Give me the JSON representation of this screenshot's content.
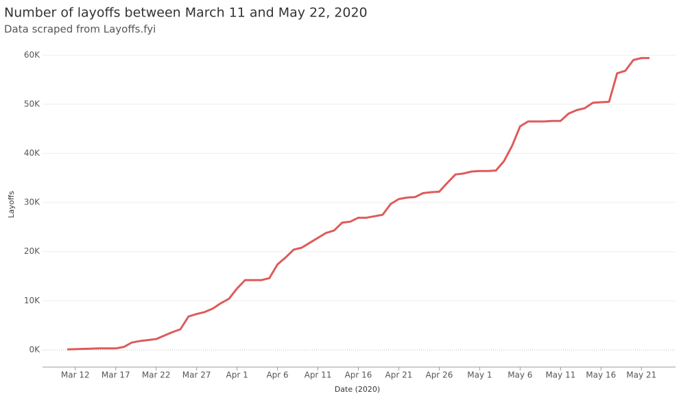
{
  "chart_data": {
    "type": "line",
    "title": "Number of layoffs between March 11 and May 22, 2020",
    "subtitle": "Data scraped from Layoffs.fyi",
    "x_label": "Date (2020)",
    "y_label": "Layoffs",
    "x": [
      "Mar 11",
      "Mar 12",
      "Mar 13",
      "Mar 14",
      "Mar 15",
      "Mar 16",
      "Mar 17",
      "Mar 18",
      "Mar 19",
      "Mar 20",
      "Mar 21",
      "Mar 22",
      "Mar 23",
      "Mar 24",
      "Mar 25",
      "Mar 26",
      "Mar 27",
      "Mar 28",
      "Mar 29",
      "Mar 30",
      "Mar 31",
      "Apr 1",
      "Apr 2",
      "Apr 3",
      "Apr 4",
      "Apr 5",
      "Apr 6",
      "Apr 7",
      "Apr 8",
      "Apr 9",
      "Apr 10",
      "Apr 11",
      "Apr 12",
      "Apr 13",
      "Apr 14",
      "Apr 15",
      "Apr 16",
      "Apr 17",
      "Apr 18",
      "Apr 19",
      "Apr 20",
      "Apr 21",
      "Apr 22",
      "Apr 23",
      "Apr 24",
      "Apr 25",
      "Apr 26",
      "Apr 27",
      "Apr 28",
      "Apr 29",
      "Apr 30",
      "May 1",
      "May 2",
      "May 3",
      "May 4",
      "May 5",
      "May 6",
      "May 7",
      "May 8",
      "May 9",
      "May 10",
      "May 11",
      "May 12",
      "May 13",
      "May 14",
      "May 15",
      "May 16",
      "May 17",
      "May 18",
      "May 19",
      "May 20",
      "May 21",
      "May 22"
    ],
    "series": [
      {
        "name": "Layoffs",
        "color": "#df5a5a",
        "values": [
          100,
          150,
          200,
          250,
          300,
          300,
          300,
          600,
          1500,
          1800,
          2000,
          2200,
          2900,
          3600,
          4200,
          6800,
          7300,
          7700,
          8400,
          9500,
          10400,
          12500,
          14200,
          14200,
          14200,
          14600,
          17400,
          18800,
          20400,
          20800,
          21800,
          22800,
          23800,
          24300,
          25900,
          26100,
          26900,
          26900,
          27200,
          27500,
          29700,
          30700,
          31000,
          31100,
          31900,
          32100,
          32200,
          34000,
          35700,
          35900,
          36300,
          36400,
          36400,
          36500,
          38400,
          41500,
          45500,
          46500,
          46500,
          46500,
          46600,
          46600,
          48100,
          48800,
          49200,
          50300,
          50400,
          50500,
          56300,
          56800,
          59000,
          59400,
          59400
        ]
      }
    ],
    "xticks": [
      "Mar 12",
      "Mar 17",
      "Mar 22",
      "Mar 27",
      "Apr 1",
      "Apr 6",
      "Apr 11",
      "Apr 16",
      "Apr 21",
      "Apr 26",
      "May 1",
      "May 6",
      "May 11",
      "May 16",
      "May 21"
    ],
    "ylim": [
      -3500,
      62000
    ],
    "yticks": [
      {
        "value": 0,
        "label": "0K"
      },
      {
        "value": 10000,
        "label": "10K"
      },
      {
        "value": 20000,
        "label": "20K"
      },
      {
        "value": 30000,
        "label": "30K"
      },
      {
        "value": 40000,
        "label": "40K"
      },
      {
        "value": 50000,
        "label": "50K"
      },
      {
        "value": 60000,
        "label": "60K"
      }
    ],
    "grid": true
  }
}
